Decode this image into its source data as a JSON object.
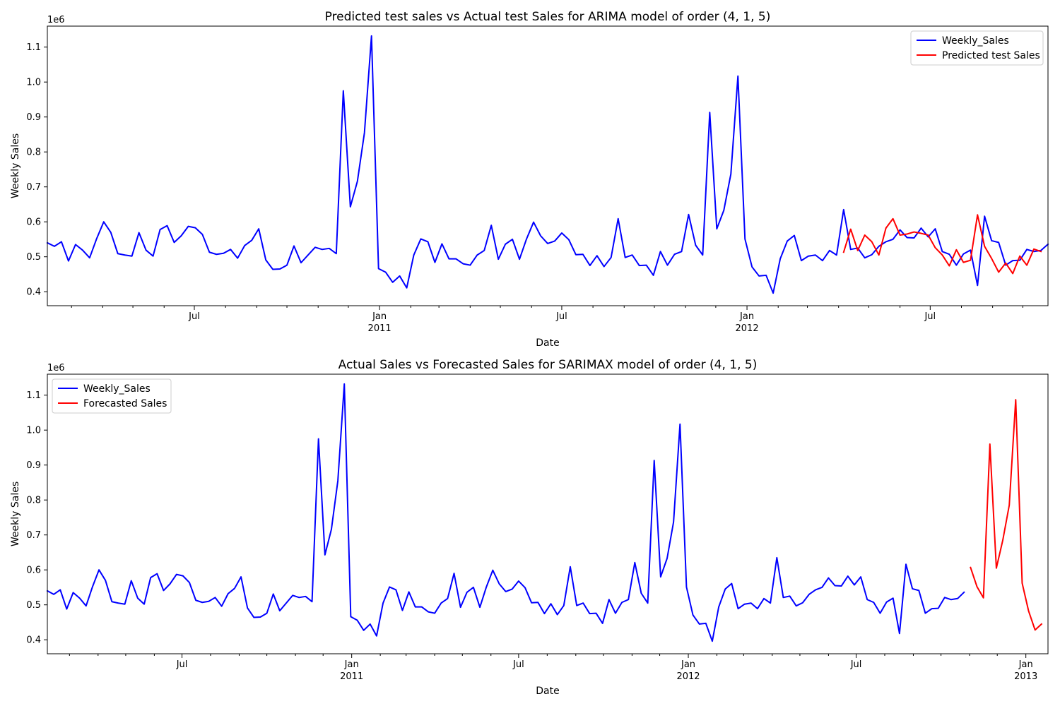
{
  "colors": {
    "actual": "#0000ff",
    "predicted": "#ff0000",
    "axes": "#000000"
  },
  "chart_data": [
    {
      "type": "line",
      "title": "Predicted test sales vs Actual test Sales for ARIMA model of order (4, 1, 5)",
      "xlabel": "Date",
      "ylabel": "Weekly Sales",
      "exponent_label": "1e6",
      "xlim": [
        "2010-02-05",
        "2012-10-26"
      ],
      "ylim": [
        360000,
        1160000
      ],
      "y_ticks": [
        400000,
        500000,
        600000,
        700000,
        800000,
        900000,
        1000000,
        1100000
      ],
      "y_tick_labels": [
        "0.4",
        "0.5",
        "0.6",
        "0.7",
        "0.8",
        "0.9",
        "1.0",
        "1.1"
      ],
      "x_major_ticks": [
        {
          "date": "2010-07-01",
          "label": "Jul",
          "sub": ""
        },
        {
          "date": "2011-01-01",
          "label": "Jan",
          "sub": "2011"
        },
        {
          "date": "2011-07-01",
          "label": "Jul",
          "sub": ""
        },
        {
          "date": "2012-01-01",
          "label": "Jan",
          "sub": "2012"
        },
        {
          "date": "2012-07-01",
          "label": "Jul",
          "sub": ""
        }
      ],
      "x_minor_ticks": [
        "2010-02-01",
        "2010-03-01",
        "2010-04-01",
        "2010-05-01",
        "2010-06-01",
        "2010-08-01",
        "2010-09-01",
        "2010-10-01",
        "2010-11-01",
        "2010-12-01",
        "2011-02-01",
        "2011-03-01",
        "2011-04-01",
        "2011-05-01",
        "2011-06-01",
        "2011-08-01",
        "2011-09-01",
        "2011-10-01",
        "2011-11-01",
        "2011-12-01",
        "2012-02-01",
        "2012-03-01",
        "2012-04-01",
        "2012-05-01",
        "2012-06-01",
        "2012-08-01",
        "2012-09-01",
        "2012-10-01"
      ],
      "legend_position": "upper right",
      "series": [
        {
          "name": "Weekly_Sales",
          "color": "#0000ff",
          "start": "2010-02-05",
          "step_days": 7,
          "values": [
            540000,
            530000,
            543000,
            488000,
            535000,
            519000,
            497000,
            552000,
            600000,
            570000,
            509000,
            505000,
            502000,
            569000,
            519000,
            502000,
            578000,
            589000,
            541000,
            560000,
            587000,
            583000,
            564000,
            513000,
            507000,
            510000,
            521000,
            496000,
            532000,
            547000,
            580000,
            491000,
            464000,
            465000,
            476000,
            531000,
            483000,
            505000,
            527000,
            521000,
            524000,
            509000,
            975000,
            643000,
            716000,
            855000,
            1132000,
            466000,
            456000,
            427000,
            445000,
            411000,
            505000,
            551000,
            543000,
            484000,
            537000,
            494000,
            494000,
            480000,
            476000,
            505000,
            518000,
            590000,
            493000,
            536000,
            550000,
            493000,
            551000,
            599000,
            560000,
            538000,
            545000,
            568000,
            549000,
            506000,
            507000,
            475000,
            503000,
            472000,
            498000,
            609000,
            498000,
            505000,
            475000,
            476000,
            447000,
            515000,
            476000,
            507000,
            515000,
            621000,
            533000,
            505000,
            913000,
            580000,
            633000,
            737000,
            1017000,
            551000,
            471000,
            445000,
            447000,
            396000,
            494000,
            545000,
            561000,
            489000,
            502000,
            505000,
            489000,
            518000,
            505000,
            635000,
            521000,
            525000,
            497000,
            506000,
            530000,
            543000,
            550000,
            577000,
            555000,
            554000,
            582000,
            557000,
            580000,
            515000,
            507000,
            476000,
            508000,
            519000,
            418000,
            616000,
            546000,
            541000,
            476000,
            489000,
            490000,
            521000,
            515000,
            518000,
            536000
          ]
        },
        {
          "name": "Predicted test Sales",
          "color": "#ff0000",
          "start": "2012-04-06",
          "step_days": 7,
          "values": [
            513000,
            579000,
            518000,
            562000,
            543000,
            505000,
            582000,
            609000,
            562000,
            565000,
            571000,
            567000,
            562000,
            526000,
            505000,
            474000,
            520000,
            484000,
            490000,
            620000,
            530000,
            495000,
            456000,
            482000,
            452000,
            502000,
            476000,
            522000,
            515000
          ]
        }
      ]
    },
    {
      "type": "line",
      "title": "Actual Sales vs Forecasted Sales for SARIMAX model of order (4, 1, 5)",
      "xlabel": "Date",
      "ylabel": "Weekly Sales",
      "exponent_label": "1e6",
      "xlim": [
        "2010-02-05",
        "2013-01-25"
      ],
      "ylim": [
        360000,
        1160000
      ],
      "y_ticks": [
        400000,
        500000,
        600000,
        700000,
        800000,
        900000,
        1000000,
        1100000
      ],
      "y_tick_labels": [
        "0.4",
        "0.5",
        "0.6",
        "0.7",
        "0.8",
        "0.9",
        "1.0",
        "1.1"
      ],
      "x_major_ticks": [
        {
          "date": "2010-07-01",
          "label": "Jul",
          "sub": ""
        },
        {
          "date": "2011-01-01",
          "label": "Jan",
          "sub": "2011"
        },
        {
          "date": "2011-07-01",
          "label": "Jul",
          "sub": ""
        },
        {
          "date": "2012-01-01",
          "label": "Jan",
          "sub": "2012"
        },
        {
          "date": "2012-07-01",
          "label": "Jul",
          "sub": ""
        },
        {
          "date": "2013-01-01",
          "label": "Jan",
          "sub": "2013"
        }
      ],
      "x_minor_ticks": [
        "2010-02-01",
        "2010-03-01",
        "2010-04-01",
        "2010-05-01",
        "2010-06-01",
        "2010-08-01",
        "2010-09-01",
        "2010-10-01",
        "2010-11-01",
        "2010-12-01",
        "2011-02-01",
        "2011-03-01",
        "2011-04-01",
        "2011-05-01",
        "2011-06-01",
        "2011-08-01",
        "2011-09-01",
        "2011-10-01",
        "2011-11-01",
        "2011-12-01",
        "2012-02-01",
        "2012-03-01",
        "2012-04-01",
        "2012-05-01",
        "2012-06-01",
        "2012-08-01",
        "2012-09-01",
        "2012-10-01",
        "2012-11-01",
        "2012-12-01"
      ],
      "legend_position": "upper left",
      "series": [
        {
          "name": "Weekly_Sales",
          "color": "#0000ff",
          "start": "2010-02-05",
          "step_days": 7,
          "values": [
            540000,
            530000,
            543000,
            488000,
            535000,
            519000,
            497000,
            552000,
            600000,
            570000,
            509000,
            505000,
            502000,
            569000,
            519000,
            502000,
            578000,
            589000,
            541000,
            560000,
            587000,
            583000,
            564000,
            513000,
            507000,
            510000,
            521000,
            496000,
            532000,
            547000,
            580000,
            491000,
            464000,
            465000,
            476000,
            531000,
            483000,
            505000,
            527000,
            521000,
            524000,
            509000,
            975000,
            643000,
            716000,
            855000,
            1132000,
            466000,
            456000,
            427000,
            445000,
            411000,
            505000,
            551000,
            543000,
            484000,
            537000,
            494000,
            494000,
            480000,
            476000,
            505000,
            518000,
            590000,
            493000,
            536000,
            550000,
            493000,
            551000,
            599000,
            560000,
            538000,
            545000,
            568000,
            549000,
            506000,
            507000,
            475000,
            503000,
            472000,
            498000,
            609000,
            498000,
            505000,
            475000,
            476000,
            447000,
            515000,
            476000,
            507000,
            515000,
            621000,
            533000,
            505000,
            913000,
            580000,
            633000,
            737000,
            1017000,
            551000,
            471000,
            445000,
            447000,
            396000,
            494000,
            545000,
            561000,
            489000,
            502000,
            505000,
            489000,
            518000,
            505000,
            635000,
            521000,
            525000,
            497000,
            506000,
            530000,
            543000,
            550000,
            577000,
            555000,
            554000,
            582000,
            557000,
            580000,
            515000,
            507000,
            476000,
            508000,
            519000,
            418000,
            616000,
            546000,
            541000,
            476000,
            489000,
            490000,
            521000,
            515000,
            518000,
            536000
          ]
        },
        {
          "name": "Forecasted Sales",
          "color": "#ff0000",
          "start": "2012-11-02",
          "step_days": 7,
          "values": [
            607000,
            552000,
            520000,
            960000,
            605000,
            685000,
            785000,
            1087000,
            562000,
            482000,
            428000,
            445000
          ]
        }
      ]
    }
  ]
}
